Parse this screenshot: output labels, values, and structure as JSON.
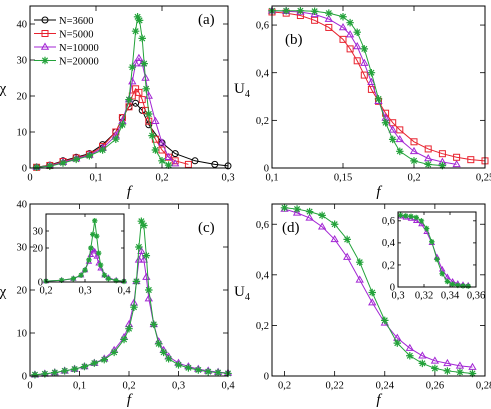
{
  "legend": [
    {
      "label": "N=3600",
      "color": "#000000",
      "marker": "circle"
    },
    {
      "label": "N=5000",
      "color": "#e8222e",
      "marker": "square"
    },
    {
      "label": "N=10000",
      "color": "#a326d4",
      "marker": "triangle"
    },
    {
      "label": "N=20000",
      "color": "#23a23a",
      "marker": "star"
    }
  ],
  "chart_data": [
    {
      "panel": "(a)",
      "type": "line",
      "xlabel": "f",
      "ylabel": "χ",
      "xlim": [
        0,
        0.3
      ],
      "ylim": [
        0,
        45
      ],
      "xticks": [
        0,
        0.1,
        0.2,
        0.3
      ],
      "xtick_labels": [
        "0",
        "0,1",
        "0,2",
        "0,3"
      ],
      "yticks": [
        0,
        10,
        20,
        30,
        40
      ],
      "ytick_labels": [
        "0",
        "10",
        "20",
        "30",
        "40"
      ],
      "series": [
        {
          "name": "N=3600",
          "x": [
            0.01,
            0.03,
            0.05,
            0.07,
            0.09,
            0.11,
            0.13,
            0.14,
            0.15,
            0.16,
            0.17,
            0.18,
            0.2,
            0.22,
            0.25,
            0.28,
            0.3
          ],
          "y": [
            0.2,
            0.8,
            2,
            3,
            4,
            6.5,
            10,
            14,
            17,
            18,
            16,
            12,
            7,
            4,
            2,
            1,
            0.6
          ]
        },
        {
          "name": "N=5000",
          "x": [
            0.01,
            0.03,
            0.05,
            0.07,
            0.09,
            0.11,
            0.13,
            0.14,
            0.15,
            0.155,
            0.16,
            0.165,
            0.17,
            0.175,
            0.18,
            0.19,
            0.2,
            0.21,
            0.22,
            0.24
          ],
          "y": [
            0.2,
            0.7,
            1.8,
            2.8,
            3.8,
            6,
            10,
            14,
            17,
            20,
            22,
            21,
            19,
            16,
            13,
            8,
            5,
            3,
            2,
            1
          ]
        },
        {
          "name": "N=10000",
          "x": [
            0.01,
            0.03,
            0.05,
            0.07,
            0.09,
            0.11,
            0.13,
            0.14,
            0.15,
            0.155,
            0.16,
            0.165,
            0.17,
            0.175,
            0.18,
            0.19,
            0.2,
            0.21,
            0.22
          ],
          "y": [
            0.2,
            0.6,
            1.6,
            2.6,
            3.6,
            5.5,
            9,
            13,
            19,
            24,
            29,
            30.5,
            29,
            25,
            20,
            13,
            7,
            3,
            1.2
          ]
        },
        {
          "name": "N=20000",
          "x": [
            0.01,
            0.03,
            0.05,
            0.07,
            0.09,
            0.11,
            0.13,
            0.14,
            0.15,
            0.155,
            0.16,
            0.163,
            0.166,
            0.17,
            0.173,
            0.176,
            0.18,
            0.185,
            0.19,
            0.2,
            0.21
          ],
          "y": [
            0.2,
            0.5,
            1.4,
            2.4,
            3.4,
            5,
            8,
            12,
            19,
            28,
            38,
            42,
            41,
            36,
            29,
            22,
            15,
            9,
            5,
            2,
            0.8
          ]
        }
      ]
    },
    {
      "panel": "(b)",
      "type": "line",
      "xlabel": "f",
      "ylabel": "U4",
      "xlim": [
        0.1,
        0.25
      ],
      "ylim": [
        0,
        0.68
      ],
      "xticks": [
        0.1,
        0.15,
        0.2,
        0.25
      ],
      "xtick_labels": [
        "0,1",
        "0,15",
        "0,2",
        "0,25"
      ],
      "yticks": [
        0,
        0.2,
        0.4,
        0.6
      ],
      "ytick_labels": [
        "0",
        "0,2",
        "0,4",
        "0,6"
      ],
      "series": [
        {
          "name": "N=5000",
          "x": [
            0.1,
            0.11,
            0.12,
            0.13,
            0.14,
            0.15,
            0.155,
            0.16,
            0.165,
            0.17,
            0.175,
            0.18,
            0.185,
            0.19,
            0.2,
            0.21,
            0.22,
            0.23,
            0.24,
            0.25
          ],
          "y": [
            0.655,
            0.65,
            0.64,
            0.62,
            0.59,
            0.54,
            0.5,
            0.45,
            0.39,
            0.33,
            0.28,
            0.23,
            0.19,
            0.16,
            0.11,
            0.08,
            0.06,
            0.045,
            0.035,
            0.03
          ]
        },
        {
          "name": "N=10000",
          "x": [
            0.1,
            0.11,
            0.12,
            0.13,
            0.14,
            0.15,
            0.155,
            0.16,
            0.165,
            0.17,
            0.175,
            0.18,
            0.185,
            0.19,
            0.2,
            0.21,
            0.22,
            0.23
          ],
          "y": [
            0.66,
            0.658,
            0.655,
            0.645,
            0.625,
            0.59,
            0.56,
            0.51,
            0.44,
            0.36,
            0.28,
            0.21,
            0.16,
            0.12,
            0.07,
            0.04,
            0.025,
            0.015
          ]
        },
        {
          "name": "N=20000",
          "x": [
            0.1,
            0.11,
            0.12,
            0.13,
            0.14,
            0.15,
            0.155,
            0.16,
            0.165,
            0.17,
            0.175,
            0.18,
            0.185,
            0.19,
            0.2,
            0.21,
            0.22
          ],
          "y": [
            0.66,
            0.66,
            0.66,
            0.658,
            0.65,
            0.635,
            0.61,
            0.57,
            0.5,
            0.4,
            0.29,
            0.19,
            0.12,
            0.07,
            0.03,
            0.015,
            0.01
          ]
        }
      ]
    },
    {
      "panel": "(c)",
      "type": "line",
      "xlabel": "f",
      "ylabel": "χ",
      "xlim": [
        0,
        0.4
      ],
      "ylim": [
        0,
        40
      ],
      "xticks": [
        0,
        0.1,
        0.2,
        0.3,
        0.4
      ],
      "xtick_labels": [
        "0",
        "0,1",
        "0,2",
        "0,3",
        "0,4"
      ],
      "yticks": [
        0,
        10,
        20,
        30,
        40
      ],
      "ytick_labels": [
        "0",
        "10",
        "20",
        "30",
        "40"
      ],
      "series": [
        {
          "name": "N=10000",
          "x": [
            0.01,
            0.03,
            0.05,
            0.07,
            0.09,
            0.11,
            0.13,
            0.15,
            0.17,
            0.19,
            0.2,
            0.21,
            0.215,
            0.22,
            0.225,
            0.23,
            0.235,
            0.24,
            0.25,
            0.26,
            0.27,
            0.28,
            0.3,
            0.32,
            0.34,
            0.36,
            0.38,
            0.4
          ],
          "y": [
            0.3,
            0.5,
            0.8,
            1.2,
            1.6,
            2.2,
            3,
            4,
            6,
            9,
            12,
            17,
            22,
            27,
            29,
            27,
            23,
            18,
            12,
            8,
            6,
            4.5,
            3,
            2.2,
            1.6,
            1.2,
            0.9,
            0.7
          ]
        },
        {
          "name": "N=20000",
          "x": [
            0.01,
            0.03,
            0.05,
            0.07,
            0.09,
            0.11,
            0.13,
            0.15,
            0.17,
            0.19,
            0.2,
            0.21,
            0.215,
            0.22,
            0.225,
            0.23,
            0.235,
            0.24,
            0.25,
            0.26,
            0.27,
            0.28,
            0.3,
            0.32,
            0.34,
            0.36,
            0.38,
            0.4
          ],
          "y": [
            0.3,
            0.5,
            0.8,
            1.2,
            1.6,
            2.2,
            3,
            3.8,
            5.5,
            8.5,
            11,
            16,
            22,
            30,
            36,
            35,
            28,
            20,
            12,
            7.5,
            5.5,
            4,
            2.6,
            1.9,
            1.4,
            1,
            0.8,
            0.6
          ]
        }
      ]
    },
    {
      "panel": "(c) inset",
      "type": "line",
      "xlim": [
        0.2,
        0.4
      ],
      "ylim": [
        0,
        40
      ],
      "xticks": [
        0.2,
        0.3,
        0.4
      ],
      "xtick_labels": [
        "0,2",
        "0,3",
        "0,4"
      ],
      "yticks": [
        0,
        20,
        30
      ],
      "ytick_labels": [
        "0",
        "20",
        "30"
      ],
      "series": [
        {
          "name": "N=10000",
          "x": [
            0.2,
            0.24,
            0.27,
            0.29,
            0.3,
            0.31,
            0.315,
            0.32,
            0.325,
            0.33,
            0.335,
            0.34,
            0.35,
            0.36,
            0.38,
            0.4
          ],
          "y": [
            0.5,
            1,
            2,
            4,
            7,
            12,
            16,
            19,
            18,
            15,
            11,
            8,
            4,
            2.5,
            1,
            0.5
          ]
        },
        {
          "name": "N=20000",
          "x": [
            0.2,
            0.24,
            0.27,
            0.29,
            0.3,
            0.31,
            0.315,
            0.32,
            0.325,
            0.33,
            0.335,
            0.34,
            0.35,
            0.36,
            0.38,
            0.4
          ],
          "y": [
            0.5,
            1,
            2,
            4,
            7,
            13,
            20,
            28,
            36,
            27,
            17,
            10,
            4,
            2,
            0.8,
            0.4
          ]
        }
      ]
    },
    {
      "panel": "(d)",
      "type": "line",
      "xlabel": "f",
      "ylabel": "U4",
      "xlim": [
        0.195,
        0.28
      ],
      "ylim": [
        0,
        0.68
      ],
      "xticks": [
        0.2,
        0.22,
        0.24,
        0.26,
        0.28
      ],
      "xtick_labels": [
        "0,2",
        "0,22",
        "0,24",
        "0,26",
        "0,28"
      ],
      "yticks": [
        0,
        0.2,
        0.4,
        0.6
      ],
      "ytick_labels": [
        "0",
        "0,2",
        "0,4",
        "0,6"
      ],
      "series": [
        {
          "name": "N=10000",
          "x": [
            0.2,
            0.205,
            0.21,
            0.215,
            0.22,
            0.225,
            0.23,
            0.235,
            0.24,
            0.245,
            0.25,
            0.255,
            0.26,
            0.265,
            0.27,
            0.275
          ],
          "y": [
            0.66,
            0.645,
            0.625,
            0.59,
            0.54,
            0.47,
            0.38,
            0.29,
            0.21,
            0.15,
            0.11,
            0.08,
            0.06,
            0.05,
            0.04,
            0.035
          ]
        },
        {
          "name": "N=20000",
          "x": [
            0.2,
            0.205,
            0.21,
            0.215,
            0.22,
            0.225,
            0.23,
            0.235,
            0.24,
            0.245,
            0.25,
            0.255,
            0.26,
            0.265,
            0.27,
            0.275
          ],
          "y": [
            0.665,
            0.66,
            0.65,
            0.635,
            0.6,
            0.54,
            0.45,
            0.33,
            0.22,
            0.13,
            0.08,
            0.05,
            0.03,
            0.02,
            0.015,
            0.01
          ]
        }
      ]
    },
    {
      "panel": "(d) inset",
      "type": "line",
      "xlim": [
        0.3,
        0.36
      ],
      "ylim": [
        0,
        0.68
      ],
      "xticks": [
        0.3,
        0.32,
        0.34,
        0.36
      ],
      "xtick_labels": [
        "0,3",
        "0,32",
        "0,34",
        "0,36"
      ],
      "yticks": [
        0,
        0.2,
        0.4,
        0.6
      ],
      "ytick_labels": [
        "0",
        "0,2",
        "0,4",
        "0,6"
      ],
      "series": [
        {
          "name": "N=10000",
          "x": [
            0.302,
            0.306,
            0.31,
            0.314,
            0.318,
            0.322,
            0.326,
            0.33,
            0.334,
            0.338,
            0.342,
            0.346,
            0.35,
            0.354
          ],
          "y": [
            0.64,
            0.63,
            0.62,
            0.6,
            0.57,
            0.5,
            0.4,
            0.27,
            0.16,
            0.09,
            0.05,
            0.03,
            0.02,
            0.015
          ]
        },
        {
          "name": "N=20000",
          "x": [
            0.302,
            0.306,
            0.31,
            0.314,
            0.318,
            0.322,
            0.326,
            0.33,
            0.334,
            0.338,
            0.342,
            0.346,
            0.35,
            0.354
          ],
          "y": [
            0.65,
            0.645,
            0.64,
            0.63,
            0.6,
            0.53,
            0.41,
            0.25,
            0.12,
            0.05,
            0.025,
            0.015,
            0.01,
            0.008
          ]
        }
      ]
    }
  ]
}
